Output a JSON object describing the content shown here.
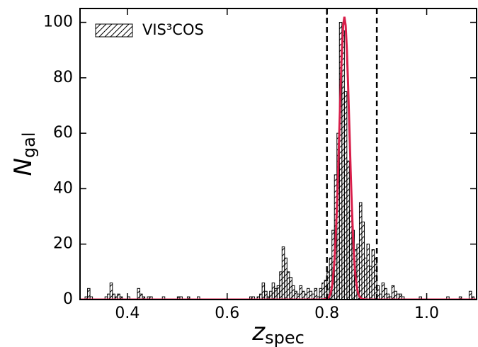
{
  "chart_data": {
    "type": "histogram",
    "xlabel": {
      "main": "z",
      "sub": "spec"
    },
    "ylabel": {
      "main": "N",
      "sub": "gal"
    },
    "xlim": [
      0.305,
      1.1
    ],
    "ylim": [
      0,
      105
    ],
    "xticks": [
      0.4,
      0.6,
      0.8,
      {
        "value": 1.0,
        "label": "1.0"
      }
    ],
    "yticks": [
      0,
      20,
      40,
      60,
      80,
      100
    ],
    "legend": "upper left",
    "vlines": [
      0.8,
      0.9
    ],
    "vline_color": "#000000",
    "series": [
      {
        "name": "VIS³COS",
        "color": "#000000",
        "hatch": true,
        "bins": [
          0.305,
          0.31,
          0.315,
          0.32,
          0.325,
          0.33,
          0.335,
          0.34,
          0.345,
          0.35,
          0.355,
          0.36,
          0.365,
          0.37,
          0.375,
          0.38,
          0.385,
          0.39,
          0.395,
          0.4,
          0.405,
          0.41,
          0.415,
          0.42,
          0.425,
          0.43,
          0.435,
          0.44,
          0.445,
          0.45,
          0.455,
          0.46,
          0.465,
          0.47,
          0.475,
          0.48,
          0.485,
          0.49,
          0.495,
          0.5,
          0.505,
          0.51,
          0.515,
          0.52,
          0.525,
          0.53,
          0.535,
          0.54,
          0.545,
          0.55,
          0.555,
          0.56,
          0.565,
          0.57,
          0.575,
          0.58,
          0.585,
          0.59,
          0.595,
          0.6,
          0.605,
          0.61,
          0.615,
          0.62,
          0.625,
          0.63,
          0.635,
          0.64,
          0.645,
          0.65,
          0.655,
          0.66,
          0.665,
          0.67,
          0.675,
          0.68,
          0.685,
          0.69,
          0.695,
          0.7,
          0.705,
          0.71,
          0.715,
          0.72,
          0.725,
          0.73,
          0.735,
          0.74,
          0.745,
          0.75,
          0.755,
          0.76,
          0.765,
          0.77,
          0.775,
          0.78,
          0.785,
          0.79,
          0.795,
          0.8,
          0.805,
          0.81,
          0.815,
          0.82,
          0.825,
          0.83,
          0.835,
          0.84,
          0.845,
          0.85,
          0.855,
          0.86,
          0.865,
          0.87,
          0.875,
          0.88,
          0.885,
          0.89,
          0.895,
          0.9,
          0.905,
          0.91,
          0.915,
          0.92,
          0.925,
          0.93,
          0.935,
          0.94,
          0.945,
          0.95,
          0.955,
          0.96,
          0.965,
          0.97,
          0.975,
          0.98,
          0.985,
          0.99,
          0.995,
          1.0,
          1.005,
          1.01,
          1.015,
          1.02,
          1.025,
          1.03,
          1.035,
          1.04,
          1.045,
          1.05,
          1.055,
          1.06,
          1.065,
          1.07,
          1.075,
          1.08,
          1.085,
          1.09,
          1.095,
          1.1
        ],
        "values": [
          0,
          0,
          1,
          4,
          1,
          0,
          0,
          0,
          0,
          0,
          1,
          2,
          6,
          2,
          1,
          2,
          1,
          0,
          0,
          1,
          0,
          0,
          0,
          4,
          2,
          1,
          0,
          1,
          1,
          0,
          0,
          0,
          0,
          1,
          0,
          0,
          0,
          0,
          0,
          1,
          1,
          0,
          0,
          1,
          0,
          0,
          0,
          1,
          0,
          0,
          0,
          0,
          0,
          0,
          0,
          0,
          0,
          0,
          0,
          0,
          0,
          0,
          0,
          0,
          0,
          0,
          0,
          0,
          1,
          1,
          0,
          1,
          2,
          6,
          3,
          1,
          3,
          6,
          4,
          5,
          10,
          19,
          15,
          10,
          8,
          5,
          3,
          2,
          5,
          3,
          2,
          4,
          3,
          2,
          4,
          1,
          4,
          6,
          7,
          10,
          15,
          25,
          45,
          60,
          100,
          97,
          75,
          50,
          32,
          25,
          18,
          20,
          35,
          28,
          15,
          20,
          12,
          18,
          15,
          5,
          2,
          6,
          4,
          2,
          1,
          5,
          3,
          2,
          2,
          1,
          0,
          0,
          0,
          0,
          0,
          0,
          1,
          0,
          0,
          0,
          0,
          0,
          0,
          0,
          0,
          0,
          0,
          1,
          0,
          0,
          0,
          0,
          1,
          0,
          0,
          0,
          3,
          1,
          0
        ]
      },
      {
        "type": "line",
        "color": "#d81e4a",
        "x": [
          0.305,
          0.78,
          0.79,
          0.8,
          0.805,
          0.8075,
          0.81,
          0.8125,
          0.815,
          0.8175,
          0.82,
          0.8225,
          0.825,
          0.8275,
          0.83,
          0.8325,
          0.835,
          0.8375,
          0.84,
          0.8425,
          0.845,
          0.8475,
          0.85,
          0.8525,
          0.855,
          0.8575,
          0.86,
          0.8625,
          0.865,
          0.87,
          0.88,
          0.89,
          1.1
        ],
        "values": [
          0,
          0,
          0,
          0.2,
          1.1,
          2.3,
          4.5,
          8.1,
          13.8,
          22.1,
          33.1,
          46.7,
          61.9,
          77,
          90,
          98.9,
          102,
          98.9,
          90,
          77,
          61.9,
          46.7,
          33.1,
          22.1,
          13.8,
          8.1,
          4.5,
          2.3,
          1.1,
          0.2,
          0,
          0,
          0
        ]
      }
    ]
  }
}
